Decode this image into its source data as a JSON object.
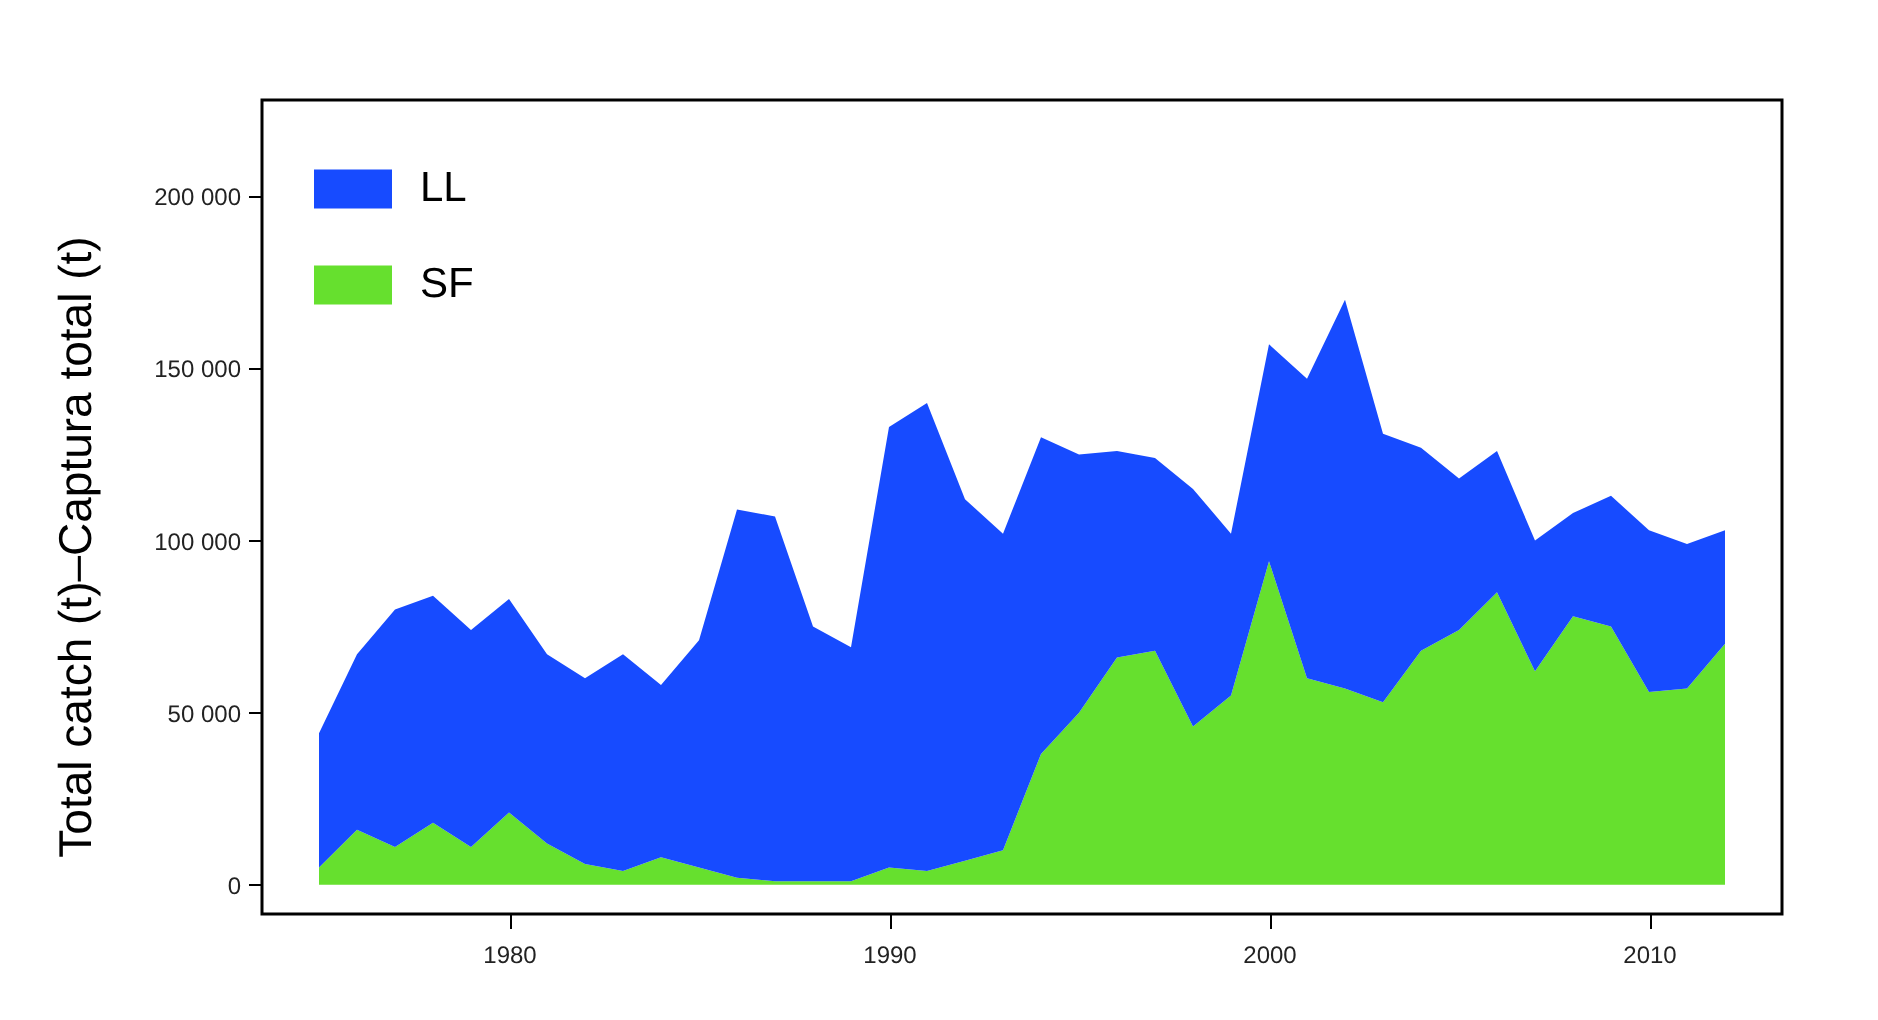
{
  "chart_data": {
    "type": "area",
    "ylabel": "Total catch (t)–Captura total (t)",
    "stacked": true,
    "x": [
      1975,
      1976,
      1977,
      1978,
      1979,
      1980,
      1981,
      1982,
      1983,
      1984,
      1985,
      1986,
      1987,
      1988,
      1989,
      1990,
      1991,
      1992,
      1993,
      1994,
      1995,
      1996,
      1997,
      1998,
      1999,
      2000,
      2001,
      2002,
      2003,
      2004,
      2005,
      2006,
      2007,
      2008,
      2009,
      2010,
      2011,
      2012
    ],
    "series": [
      {
        "name": "SF",
        "color": "#66e02e",
        "values": [
          5000,
          16000,
          11000,
          18000,
          11000,
          21000,
          12000,
          6000,
          4000,
          8000,
          5000,
          2000,
          1000,
          1000,
          1000,
          5000,
          4000,
          7000,
          10000,
          38000,
          50000,
          66000,
          68000,
          46000,
          55000,
          94000,
          60000,
          57000,
          53000,
          68000,
          74000,
          85000,
          62000,
          78000,
          75000,
          56000,
          57000,
          70000
        ]
      },
      {
        "name": "LL",
        "color": "#174bff",
        "values": [
          39000,
          51000,
          69000,
          66000,
          63000,
          62000,
          55000,
          54000,
          63000,
          50000,
          66000,
          107000,
          106000,
          74000,
          68000,
          128000,
          136000,
          105000,
          92000,
          92000,
          75000,
          60000,
          56000,
          69000,
          47000,
          63000,
          87000,
          113000,
          78000,
          59000,
          44000,
          41000,
          38000,
          30000,
          38000,
          47000,
          42000,
          33000
        ]
      }
    ],
    "xlim": [
      1973.5,
      2013.5
    ],
    "xticks": [
      1980,
      1990,
      2000,
      2010
    ],
    "ylim": [
      -8500,
      228000
    ],
    "yticks": [
      0,
      {
        "value": 50000,
        "label": "50 000"
      },
      {
        "value": 100000,
        "label": "100 000"
      },
      {
        "value": 150000,
        "label": "150 000"
      },
      {
        "value": 200000,
        "label": "200 000"
      }
    ],
    "legend": "top left"
  }
}
